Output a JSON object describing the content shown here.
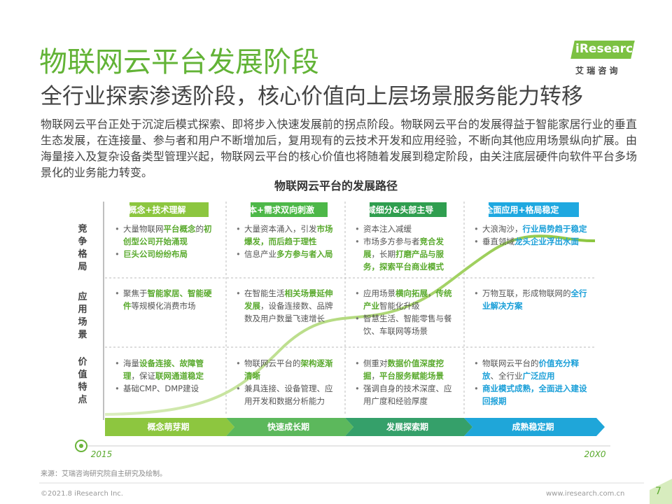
{
  "header": {
    "title": "物联网云平台发展阶段",
    "subtitle": "全行业探索渗透阶段，核心价值向上层场景服务能力转移",
    "logo": "iResearch",
    "logo_cn": "艾 瑞 咨 询"
  },
  "intro": "物联网云平台正处于沉淀后模式探索、即将步入快速发展前的拐点阶段。物联网云平台的发展得益于智能家居行业的垂直生态发展，在连接量、参与者和用户不断增加后，复用现有的云技术开发和应用经验，不断向其他应用场景纵向扩展。由海量接入及复杂设备类型管理兴起，物联网云平台的核心价值也将随着发展到稳定阶段，由关注底层硬件向软件平台多场景化的业务能力转变。",
  "diagram": {
    "title": "物联网云平台的发展路径",
    "row_labels": [
      "竞争格局",
      "应用场景",
      "价值特点"
    ],
    "columns": [
      {
        "header": "概念+技术理解",
        "color": "#8cc63f",
        "accent": "#5aaa2e",
        "stage": "概念萌芽期",
        "stage_color": "#8dc63f",
        "cells": [
          [
            [
              {
                "text": "大量物联网"
              },
              {
                "text": "平台概念",
                "strong": true
              },
              {
                "text": "的"
              },
              {
                "text": "初创型公司开始涌现",
                "strong": true
              }
            ],
            [
              {
                "text": "巨头公司纷纷布局",
                "strong": true
              }
            ]
          ],
          [
            [
              {
                "text": "聚焦于"
              },
              {
                "text": "智能家居、智能硬件",
                "strong": true
              },
              {
                "text": "等规模化消费市场"
              }
            ]
          ],
          [
            [
              {
                "text": "海量"
              },
              {
                "text": "设备连接、故障管理",
                "strong": true
              },
              {
                "text": "，保证"
              },
              {
                "text": "联网通道稳定",
                "strong": true
              }
            ],
            [
              {
                "text": "基础CMP、DMP建设"
              }
            ]
          ]
        ]
      },
      {
        "header": "资本+需求双向刺激",
        "color": "#4db848",
        "accent": "#5aaa2e",
        "stage": "快速成长期",
        "stage_color": "#5cb85c",
        "cells": [
          [
            [
              {
                "text": "大量资本涌入，引发"
              },
              {
                "text": "市场爆发，而后趋于理性",
                "strong": true
              }
            ],
            [
              {
                "text": "信息产业"
              },
              {
                "text": "多方参与者入局",
                "strong": true
              }
            ]
          ],
          [
            [
              {
                "text": "在智能生活"
              },
              {
                "text": "相关场景延伸发展",
                "strong": true
              },
              {
                "text": "，设备连接数、品牌数及用户数量飞速增长"
              }
            ]
          ],
          [
            [
              {
                "text": "物联网云平台的"
              },
              {
                "text": "架构逐渐清晰",
                "strong": true
              }
            ],
            [
              {
                "text": "兼具连接、设备管理、应用开发和数据分析能力"
              }
            ]
          ]
        ]
      },
      {
        "header": "领域细分&头部主导",
        "color": "#2f9e4f",
        "accent": "#5aaa2e",
        "stage": "发展探索期",
        "stage_color": "#35a06a",
        "cells": [
          [
            [
              {
                "text": "资本注入减缓"
              }
            ],
            [
              {
                "text": "市场多方参与者"
              },
              {
                "text": "竞合发展",
                "strong": true
              },
              {
                "text": "，长期"
              },
              {
                "text": "打磨产品与服务，探索平台商业模式",
                "strong": true
              }
            ]
          ],
          [
            [
              {
                "text": "应用场景"
              },
              {
                "text": "横向拓展",
                "strong": true
              },
              {
                "text": "，"
              },
              {
                "text": "传统产业",
                "strong": true
              },
              {
                "text": "智能化升级"
              }
            ],
            [
              {
                "text": "智慧生活、智能零售与餐饮、车联网等场景"
              }
            ]
          ],
          [
            [
              {
                "text": "侧重对"
              },
              {
                "text": "数据价值深度挖掘",
                "strong": true
              },
              {
                "text": "，"
              },
              {
                "text": "平台服务赋能场景",
                "strong": true
              }
            ],
            [
              {
                "text": "强调自身的技术深度、应用广度和经验厚度"
              }
            ]
          ]
        ]
      },
      {
        "header": "全面应用+格局稳定",
        "color": "#1fa8e0",
        "accent": "#1a9fd8",
        "stage": "成熟稳定期",
        "stage_color": "#1fa6d9",
        "cells": [
          [
            [
              {
                "text": "大浪淘沙，"
              },
              {
                "text": "行业局势趋于稳定",
                "strong": true
              }
            ],
            [
              {
                "text": "垂直领域"
              },
              {
                "text": "龙头企业浮出水面",
                "strong": true
              }
            ]
          ],
          [
            [
              {
                "text": "万物互联，形成物联网的"
              },
              {
                "text": "全行业解决方案",
                "strong": true
              }
            ]
          ],
          [
            [
              {
                "text": "物联网云平台的"
              },
              {
                "text": "价值充分释放",
                "strong": true
              },
              {
                "text": "、全行业"
              },
              {
                "text": "广泛应用",
                "strong": true
              }
            ],
            [
              {
                "text": "商业模式成熟，全面进入建设回报期",
                "strong": true
              }
            ]
          ]
        ]
      }
    ],
    "timeline_start": "2015",
    "timeline_end": "20X0"
  },
  "footer": {
    "source": "来源：艾瑞咨询研究院自主研究及绘制。",
    "copyright": "©2021.8 iResearch Inc.",
    "url": "www.iresearch.com.cn",
    "page": "7"
  }
}
